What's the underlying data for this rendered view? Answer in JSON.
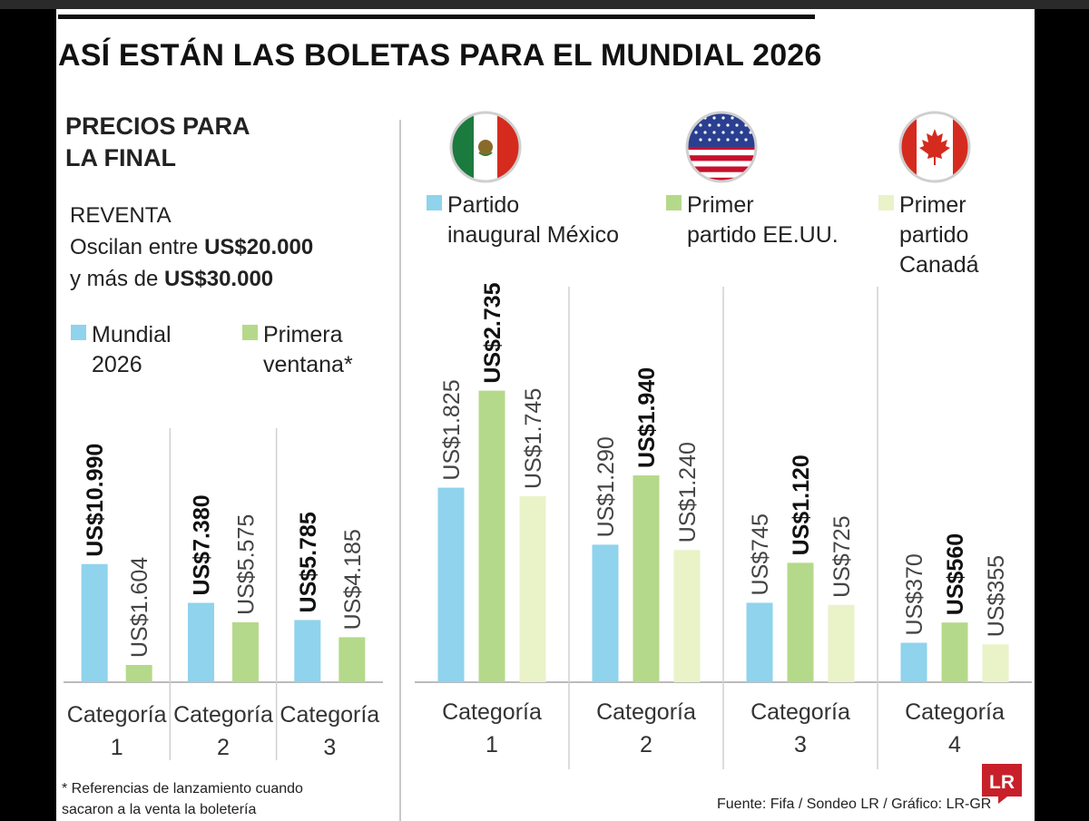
{
  "title": "ASÍ ESTÁN LAS BOLETAS PARA EL MUNDIAL 2026",
  "left": {
    "heading": "PRECIOS PARA\nLA FINAL",
    "reventa_label": "REVENTA",
    "reventa_line1": "Oscilan entre ",
    "reventa_value1": "US$20.000",
    "reventa_line2": "y más de ",
    "reventa_value2": "US$30.000",
    "legend": [
      {
        "label": "Mundial\n2026",
        "color": "#8fd3ec"
      },
      {
        "label": "Primera\nventana*",
        "color": "#b5d98a"
      }
    ],
    "footnote": "* Referencias de lanzamiento cuando\n  sacaron a la venta la boletería"
  },
  "right": {
    "flags": [
      "mexico-flag-icon",
      "usa-flag-icon",
      "canada-flag-icon"
    ],
    "legend": [
      {
        "label": "Partido\ninaugural México",
        "color": "#8fd3ec"
      },
      {
        "label": "Primer\npartido EE.UU.",
        "color": "#b5d98a"
      },
      {
        "label": "Primer partido\nCanadá",
        "color": "#eaf2c8"
      }
    ]
  },
  "source": "Fuente: Fifa / Sondeo LR / Gráfico: LR-GR",
  "badge_text": "LR",
  "chart_data": [
    {
      "type": "bar",
      "categories": [
        "Categoría\n1",
        "Categoría\n2",
        "Categoría\n3"
      ],
      "series": [
        {
          "name": "Mundial 2026",
          "color": "#8fd3ec",
          "values": [
            10990,
            7380,
            5785
          ],
          "labels": [
            "US$10.990",
            "US$7.380",
            "US$5.785"
          ],
          "bold": true
        },
        {
          "name": "Primera ventana*",
          "color": "#b5d98a",
          "values": [
            1604,
            5575,
            4185
          ],
          "labels": [
            "US$1.604",
            "US$5.575",
            "US$4.185"
          ],
          "bold": false
        }
      ]
    },
    {
      "type": "bar",
      "categories": [
        "Categoría\n1",
        "Categoría\n2",
        "Categoría\n3",
        "Categoría\n4"
      ],
      "series": [
        {
          "name": "Partido inaugural México",
          "color": "#8fd3ec",
          "values": [
            1825,
            1290,
            745,
            370
          ],
          "labels": [
            "US$1.825",
            "US$1.290",
            "US$745",
            "US$370"
          ],
          "bold": false
        },
        {
          "name": "Primer partido EE.UU.",
          "color": "#b5d98a",
          "values": [
            2735,
            1940,
            1120,
            560
          ],
          "labels": [
            "US$2.735",
            "US$1.940",
            "US$1.120",
            "US$560"
          ],
          "bold": true
        },
        {
          "name": "Primer partido Canadá",
          "color": "#eaf2c8",
          "values": [
            1745,
            1240,
            725,
            355
          ],
          "labels": [
            "US$1.745",
            "US$1.240",
            "US$725",
            "US$355"
          ],
          "bold": false
        }
      ]
    }
  ]
}
